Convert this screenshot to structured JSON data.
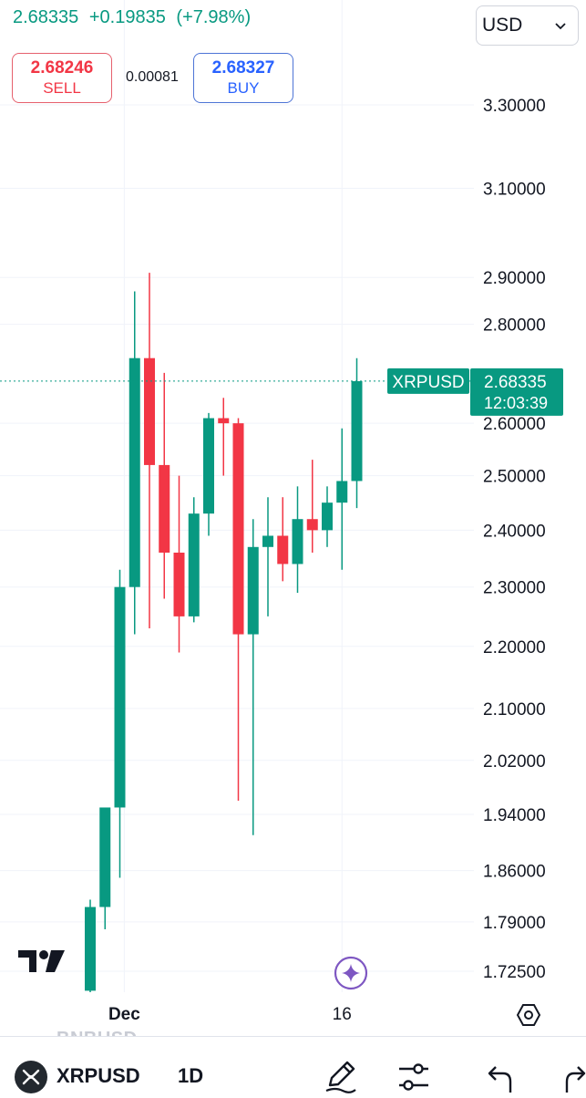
{
  "header": {
    "last_price": "2.68335",
    "change": "+0.19835",
    "change_percent": "(+7.98%)"
  },
  "currency": {
    "selected": "USD"
  },
  "trade": {
    "sell_price": "2.68246",
    "sell_label": "SELL",
    "spread": "0.00081",
    "buy_price": "2.68327",
    "buy_label": "BUY"
  },
  "price_label": {
    "symbol": "XRPUSD",
    "price": "2.68335",
    "countdown": "12:03:39"
  },
  "bottom_bar": {
    "ghost_symbol": "BNBUSD",
    "symbol": "XRPUSD",
    "interval": "1D"
  },
  "icons": {
    "tradingview_logo": "tradingview-logo-icon",
    "assistant": "sparkle-assistant-icon",
    "settings": "hexagon-settings-icon",
    "draw": "pencil-icon",
    "indicators": "sliders-icon",
    "undo": "undo-icon"
  },
  "colors": {
    "up": "#089981",
    "down": "#f23645",
    "grid": "#f0f3fa",
    "text": "#131722",
    "assistant": "#7e57c2"
  },
  "chart_data": {
    "type": "candlestick",
    "symbol": "XRPUSD",
    "interval": "1D",
    "x_labels": [
      {
        "text": "Dec",
        "index": 2.3
      },
      {
        "text": "16",
        "index": 17
      }
    ],
    "y_ticks": [
      3.3,
      3.1,
      2.9,
      2.8,
      2.6,
      2.5,
      2.4,
      2.3,
      2.2,
      2.1,
      2.02,
      1.94,
      1.86,
      1.79,
      1.725
    ],
    "y_tick_labels": [
      "3.30000",
      "3.10000",
      "2.90000",
      "2.80000",
      "2.60000",
      "2.50000",
      "2.40000",
      "2.30000",
      "2.20000",
      "2.10000",
      "2.02000",
      "1.94000",
      "1.86000",
      "1.79000",
      "1.72500"
    ],
    "y_scale": "log",
    "y_range": [
      1.7,
      3.4
    ],
    "last_price": 2.68335,
    "candles": [
      {
        "open": 1.7,
        "high": 1.82,
        "low": 1.69,
        "close": 1.81
      },
      {
        "open": 1.81,
        "high": 1.95,
        "low": 1.78,
        "close": 1.95
      },
      {
        "open": 1.95,
        "high": 2.33,
        "low": 1.85,
        "close": 2.3
      },
      {
        "open": 2.3,
        "high": 2.87,
        "low": 2.22,
        "close": 2.73
      },
      {
        "open": 2.73,
        "high": 2.91,
        "low": 2.23,
        "close": 2.52
      },
      {
        "open": 2.52,
        "high": 2.7,
        "low": 2.28,
        "close": 2.36
      },
      {
        "open": 2.36,
        "high": 2.5,
        "low": 2.19,
        "close": 2.25
      },
      {
        "open": 2.25,
        "high": 2.46,
        "low": 2.24,
        "close": 2.43
      },
      {
        "open": 2.43,
        "high": 2.62,
        "low": 2.39,
        "close": 2.61
      },
      {
        "open": 2.61,
        "high": 2.65,
        "low": 2.5,
        "close": 2.6
      },
      {
        "open": 2.6,
        "high": 2.61,
        "low": 1.96,
        "close": 2.22
      },
      {
        "open": 2.22,
        "high": 2.42,
        "low": 1.91,
        "close": 2.37
      },
      {
        "open": 2.37,
        "high": 2.46,
        "low": 2.25,
        "close": 2.39
      },
      {
        "open": 2.39,
        "high": 2.46,
        "low": 2.31,
        "close": 2.34
      },
      {
        "open": 2.34,
        "high": 2.48,
        "low": 2.29,
        "close": 2.42
      },
      {
        "open": 2.42,
        "high": 2.53,
        "low": 2.36,
        "close": 2.4
      },
      {
        "open": 2.4,
        "high": 2.48,
        "low": 2.37,
        "close": 2.45
      },
      {
        "open": 2.45,
        "high": 2.59,
        "low": 2.33,
        "close": 2.49
      },
      {
        "open": 2.49,
        "high": 2.73,
        "low": 2.44,
        "close": 2.68335
      }
    ]
  }
}
